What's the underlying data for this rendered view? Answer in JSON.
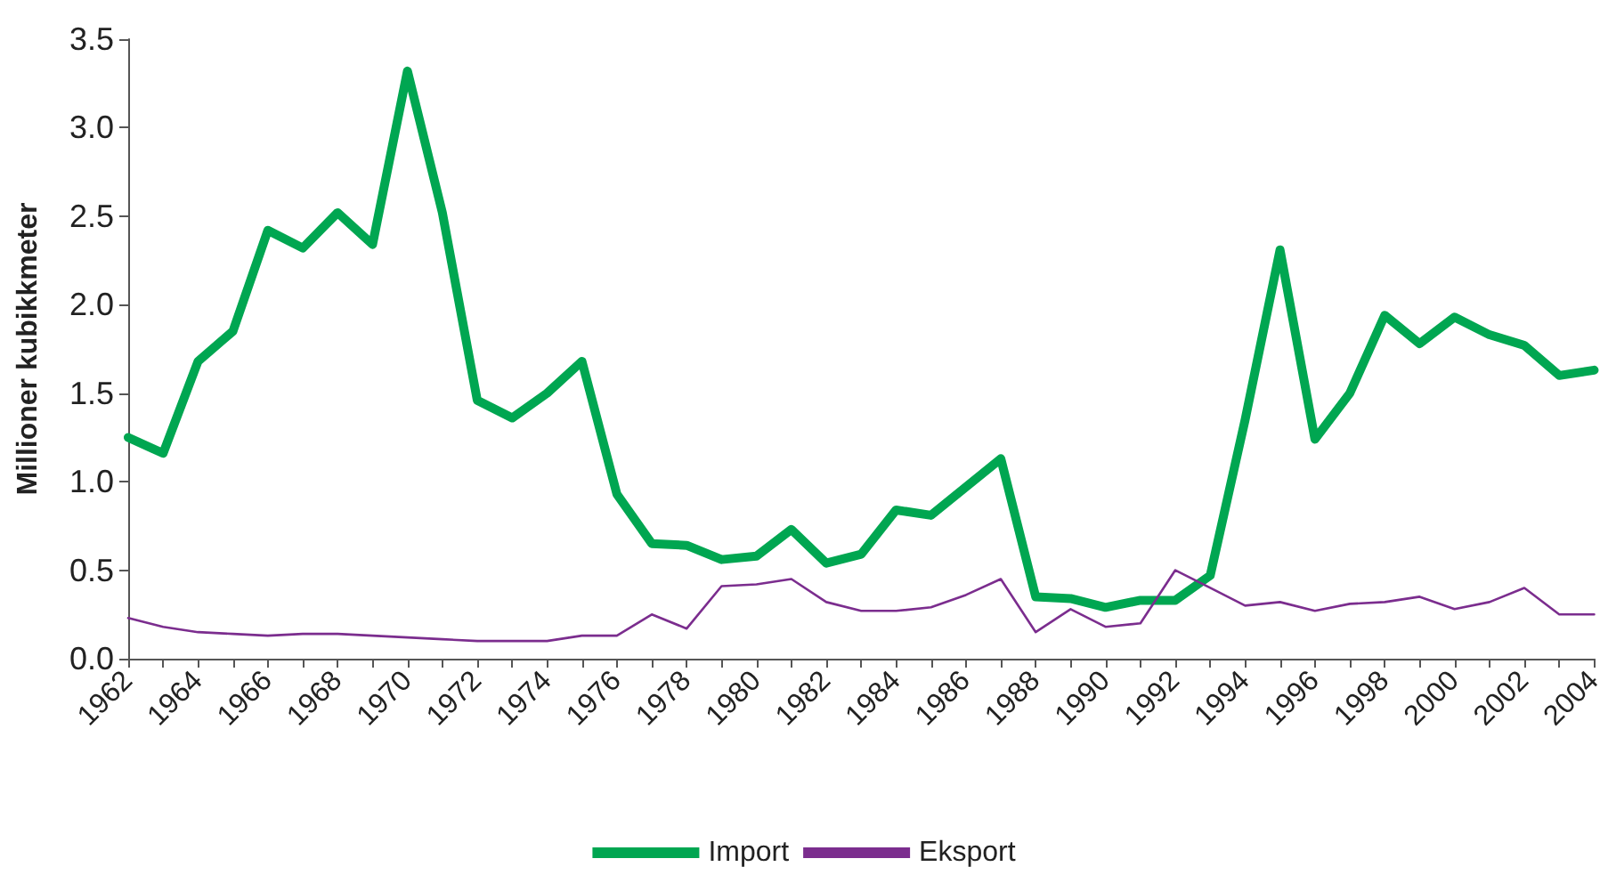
{
  "chart_data": {
    "type": "line",
    "ylabel": "Millioner kubikkmeter",
    "categories": [
      "1962",
      null,
      "1964",
      null,
      "1966",
      null,
      "1968",
      null,
      "1970",
      null,
      "1972",
      null,
      "1974",
      null,
      "1976",
      null,
      "1978",
      null,
      "1980",
      null,
      "1982",
      null,
      "1984",
      null,
      "1986",
      null,
      "1988",
      null,
      "1990",
      null,
      "1992",
      null,
      "1994",
      null,
      "1996",
      null,
      "1998",
      null,
      "2000",
      null,
      "2002",
      null,
      "2004"
    ],
    "series": [
      {
        "name": "Import",
        "color": "#00a651",
        "values": [
          1.25,
          1.16,
          1.68,
          1.85,
          2.42,
          2.32,
          2.52,
          2.34,
          3.32,
          2.52,
          1.46,
          1.36,
          1.5,
          1.68,
          0.93,
          0.65,
          0.64,
          0.56,
          0.58,
          0.73,
          0.54,
          0.59,
          0.84,
          0.81,
          0.97,
          1.13,
          0.35,
          0.34,
          0.29,
          0.33,
          0.33,
          0.47,
          1.35,
          2.31,
          1.24,
          1.5,
          1.94,
          1.78,
          1.93,
          1.83,
          1.77,
          1.6,
          1.63
        ]
      },
      {
        "name": "Eksport",
        "color": "#7b2d8e",
        "values": [
          0.23,
          0.18,
          0.15,
          0.14,
          0.13,
          0.14,
          0.14,
          0.13,
          0.12,
          0.11,
          0.1,
          0.1,
          0.1,
          0.13,
          0.13,
          0.25,
          0.17,
          0.41,
          0.42,
          0.45,
          0.32,
          0.27,
          0.27,
          0.29,
          0.36,
          0.45,
          0.15,
          0.28,
          0.18,
          0.2,
          0.5,
          0.4,
          0.3,
          0.32,
          0.27,
          0.31,
          0.32,
          0.35,
          0.28,
          0.32,
          0.4,
          0.25,
          0.25
        ]
      }
    ],
    "ylim": [
      0,
      3.5
    ],
    "yticks": [
      {
        "value": 0,
        "label": "0.0"
      },
      {
        "value": 0.5,
        "label": "0.5"
      },
      {
        "value": 1,
        "label": "1.0"
      },
      {
        "value": 1.5,
        "label": "1.5"
      },
      {
        "value": 2,
        "label": "2.0"
      },
      {
        "value": 2.5,
        "label": "2.5"
      },
      {
        "value": 3,
        "label": "3.0"
      },
      {
        "value": 3.5,
        "label": "3.5"
      }
    ],
    "grid": false,
    "legend": "bottom",
    "marker": "none",
    "line_style": "solid"
  }
}
